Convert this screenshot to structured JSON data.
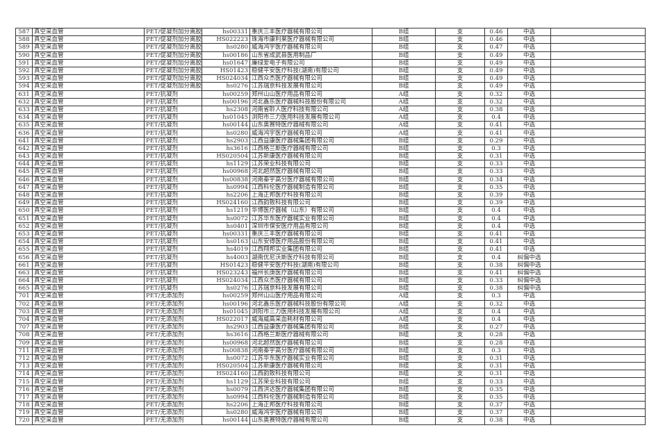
{
  "rows": [
    [
      "587",
      "真空采血管",
      "PET/促凝剂加分离胶",
      "hs00331",
      "重庆三丰医疗器械有限公司",
      "B组",
      "支",
      "0.46",
      "中选"
    ],
    [
      "588",
      "真空采血管",
      "PET/促凝剂加分离胶",
      "HS022223",
      "珠海市康利莱医疗器械有限公司",
      "B组",
      "支",
      "0.46",
      "中选"
    ],
    [
      "589",
      "真空采血管",
      "PET/促凝剂加分离胶",
      "hs0280",
      "威海鸿宇医疗器械有限公司",
      "B组",
      "支",
      "0.47",
      "中选"
    ],
    [
      "590",
      "真空采血管",
      "PET/促凝剂加分离胶",
      "hs00186",
      "山东省成武县医用制品厂",
      "B组",
      "支",
      "0.49",
      "中选"
    ],
    [
      "591",
      "真空采血管",
      "PET/促凝剂加分离胶",
      "hs01647",
      "廉绿爱电子有限公司",
      "B组",
      "支",
      "0.49",
      "中选"
    ],
    [
      "592",
      "真空采血管",
      "PET/促凝剂加分离胶",
      "HS01423",
      "稳健平安医疗科技(湖南)有限公司",
      "B组",
      "支",
      "0.49",
      "中选"
    ],
    [
      "593",
      "真空采血管",
      "PET/促凝剂加分离胶",
      "HS024034",
      "江西众杰医疗器械有限公司",
      "B组",
      "支",
      "0.49",
      "中选"
    ],
    [
      "594",
      "真空采血管",
      "PET/促凝剂加分离胶",
      "hs0276",
      "江苏瑞京科技发展有限公司",
      "B组",
      "支",
      "0.49",
      "中选"
    ],
    [
      "631",
      "真空采血管",
      "PET/抗凝剂",
      "hs00259",
      "郑州山山医疗用品有限公司",
      "A组",
      "支",
      "0.32",
      "中选"
    ],
    [
      "632",
      "真空采血管",
      "PET/抗凝剂",
      "hs00196",
      "河北鑫乐医疗器械科技股份有限公司",
      "A组",
      "支",
      "0.32",
      "中选"
    ],
    [
      "633",
      "真空采血管",
      "PET/抗凝剂",
      "hs2308",
      "河南省聆人医疗科技有限公司",
      "A组",
      "支",
      "0.38",
      "中选"
    ],
    [
      "634",
      "真空采血管",
      "PET/抗凝剂",
      "hs01045",
      "浏阳市三力医用科技发展有限公司",
      "A组",
      "支",
      "0.4",
      "中选"
    ],
    [
      "635",
      "真空采血管",
      "PET/抗凝剂",
      "hs00144",
      "山东奥赛特医疗器械有限公司",
      "A组",
      "支",
      "0.41",
      "中选"
    ],
    [
      "636",
      "真空采血管",
      "PET/抗凝剂",
      "hs0280",
      "威海鸿宇医疗器械有限公司",
      "A组",
      "支",
      "0.41",
      "中选"
    ],
    [
      "641",
      "真空采血管",
      "PET/抗凝剂",
      "hs2903",
      "江西益康医疗器械集团有限公司",
      "B组",
      "支",
      "0.29",
      "中选"
    ],
    [
      "642",
      "真空采血管",
      "PET/抗凝剂",
      "hs3616",
      "江西格兰斯医疗器械有限公司",
      "B组",
      "支",
      "0.3",
      "中选"
    ],
    [
      "643",
      "真空采血管",
      "PET/抗凝剂",
      "HS020504",
      "江苏新康医疗器械有限公司",
      "B组",
      "支",
      "0.31",
      "中选"
    ],
    [
      "644",
      "真空采血管",
      "PET/抗凝剂",
      "hs1129",
      "江苏荣业科技有限公司",
      "B组",
      "支",
      "0.33",
      "中选"
    ],
    [
      "645",
      "真空采血管",
      "PET/抗凝剂",
      "hs00968",
      "河北超然医疗器械有限公司",
      "B组",
      "支",
      "0.33",
      "中选"
    ],
    [
      "646",
      "真空采血管",
      "PET/抗凝剂",
      "hs00838",
      "河南秦宇高分医疗器械有限公司",
      "B组",
      "支",
      "0.34",
      "中选"
    ],
    [
      "647",
      "真空采血管",
      "PET/抗凝剂",
      "hs0994",
      "江西科伦医疗器械制造有限公司",
      "B组",
      "支",
      "0.35",
      "中选"
    ],
    [
      "648",
      "真空采血管",
      "PET/抗凝剂",
      "hs2206",
      "上海正邦医疗科技有限公司",
      "B组",
      "支",
      "0.39",
      "中选"
    ],
    [
      "649",
      "真空采血管",
      "PET/抗凝剂",
      "HS024160",
      "江西韵致科技有限公司",
      "B组",
      "支",
      "0.39",
      "中选"
    ],
    [
      "650",
      "真空采血管",
      "PET/抗凝剂",
      "hs1219",
      "华博医疗器械（山东）有限公司",
      "B组",
      "支",
      "0.4",
      "中选"
    ],
    [
      "651",
      "真空采血管",
      "PET/抗凝剂",
      "hs0072",
      "江苏华东医疗器械实业有限公司",
      "B组",
      "支",
      "0.4",
      "中选"
    ],
    [
      "652",
      "真空采血管",
      "PET/抗凝剂",
      "hs0401",
      "深圳市保安医疗用品有限公司",
      "B组",
      "支",
      "0.4",
      "中选"
    ],
    [
      "653",
      "真空采血管",
      "PET/抗凝剂",
      "hs00331",
      "重庆三丰医疗器械有限公司",
      "B组",
      "支",
      "0.41",
      "中选"
    ],
    [
      "654",
      "真空采血管",
      "PET/抗凝剂",
      "hs0163",
      "山东安得医疗用品股份有限公司",
      "B组",
      "支",
      "0.41",
      "中选"
    ],
    [
      "655",
      "真空采血管",
      "PET/抗凝剂",
      "hs4019",
      "江西翔邦实业集团有限公司",
      "B组",
      "支",
      "0.41",
      "中选"
    ],
    [
      "656",
      "真空采血管",
      "PET/抗凝剂",
      "hs4003",
      "湖南优尼沃斯医疗科技有限公司",
      "B组",
      "支",
      "0.4",
      "纠偏中选"
    ],
    [
      "661",
      "真空采血管",
      "PET/抗凝剂",
      "HS01423",
      "稳健平安医疗科技(湖南)有限公司",
      "B组",
      "支",
      "0.38",
      "纠偏中选"
    ],
    [
      "663",
      "真空采血管",
      "PET/抗凝剂",
      "HS023243",
      "福州长庚医疗器械有限公司",
      "B组",
      "支",
      "0.41",
      "纠偏中选"
    ],
    [
      "664",
      "真空采血管",
      "PET/抗凝剂",
      "HS024034",
      "江西众杰医疗器械有限公司",
      "B组",
      "支",
      "0.33",
      "纠偏中选"
    ],
    [
      "665",
      "真空采血管",
      "PET/抗凝剂",
      "hs0276",
      "江苏瑞京科技发展有限公司",
      "B组",
      "支",
      "0.38",
      "纠偏中选"
    ],
    [
      "701",
      "真空采血管",
      "PET/无添加剂",
      "hs00259",
      "郑州山山医疗用品有限公司",
      "A组",
      "支",
      "0.3",
      "中选"
    ],
    [
      "702",
      "真空采血管",
      "PET/无添加剂",
      "hs00196",
      "河北鑫乐医疗器械科技股份有限公司",
      "A组",
      "支",
      "0.32",
      "中选"
    ],
    [
      "703",
      "真空采血管",
      "PET/无添加剂",
      "hs01045",
      "浏阳市三力医用科技发展有限公司",
      "A组",
      "支",
      "0.4",
      "中选"
    ],
    [
      "704",
      "真空采血管",
      "PET/无添加剂",
      "HS022017",
      "威海威高采血耗材有限公司",
      "A组",
      "支",
      "0.4",
      "中选"
    ],
    [
      "707",
      "真空采血管",
      "PET/无添加剂",
      "hs2903",
      "江西益康医疗器械集团有限公司",
      "B组",
      "支",
      "0.27",
      "中选"
    ],
    [
      "708",
      "真空采血管",
      "PET/无添加剂",
      "hs3616",
      "江西格兰斯医疗器械有限公司",
      "B组",
      "支",
      "0.28",
      "中选"
    ],
    [
      "709",
      "真空采血管",
      "PET/无添加剂",
      "hs00968",
      "河北超然医疗器械有限公司",
      "B组",
      "支",
      "0.28",
      "中选"
    ],
    [
      "711",
      "真空采血管",
      "PET/无添加剂",
      "hs00838",
      "河南秦宇高分医疗器械有限公司",
      "B组",
      "支",
      "0.3",
      "中选"
    ],
    [
      "712",
      "真空采血管",
      "PET/无添加剂",
      "hs0072",
      "江苏华东医疗器械实业有限公司",
      "B组",
      "支",
      "0.31",
      "中选"
    ],
    [
      "713",
      "真空采血管",
      "PET/无添加剂",
      "HS020504",
      "江苏新康医疗器械有限公司",
      "B组",
      "支",
      "0.31",
      "中选"
    ],
    [
      "714",
      "真空采血管",
      "PET/无添加剂",
      "HS024160",
      "江西韵致科技有限公司",
      "B组",
      "支",
      "0.31",
      "中选"
    ],
    [
      "715",
      "真空采血管",
      "PET/无添加剂",
      "hs1129",
      "江苏荣业科技有限公司",
      "B组",
      "支",
      "0.33",
      "中选"
    ],
    [
      "716",
      "真空采血管",
      "PET/无添加剂",
      "hs0079",
      "江西洪达医疗器械集团有限公司",
      "B组",
      "支",
      "0.35",
      "中选"
    ],
    [
      "717",
      "真空采血管",
      "PET/无添加剂",
      "hs0994",
      "江西科伦医疗器械制造有限公司",
      "B组",
      "支",
      "0.35",
      "中选"
    ],
    [
      "718",
      "真空采血管",
      "PET/无添加剂",
      "hs2206",
      "上海正邦医疗科技有限公司",
      "B组",
      "支",
      "0.37",
      "中选"
    ],
    [
      "719",
      "真空采血管",
      "PET/无添加剂",
      "hs0280",
      "威海鸿宇医疗器械有限公司",
      "B组",
      "支",
      "0.37",
      "中选"
    ],
    [
      "720",
      "真空采血管",
      "PET/无添加剂",
      "hs00144",
      "山东奥赛特医疗器械有限公司",
      "B组",
      "支",
      "0.38",
      "中选"
    ]
  ]
}
